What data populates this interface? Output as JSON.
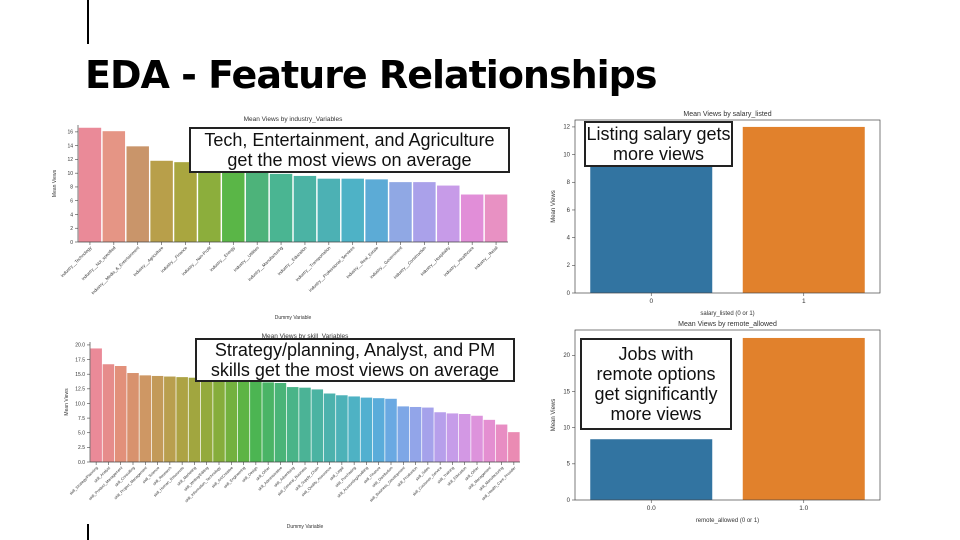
{
  "slide": {
    "title": "EDA - Feature Relationships"
  },
  "callouts": {
    "industry": "Tech, Entertainment, and Agriculture get the most views on average",
    "skill": "Strategy/planning, Analyst, and PM skills get the most views on average",
    "salary": "Listing salary gets more views",
    "remote": "Jobs with remote options get significantly more views"
  },
  "chart_data": [
    {
      "type": "bar",
      "title": "Mean Views by industry_Variables",
      "xlabel": "Dummy Variable",
      "ylabel": "Mean Views",
      "ylim": [
        0,
        17
      ],
      "yticks": [
        "0",
        "2",
        "4",
        "6",
        "8",
        "10",
        "12",
        "14",
        "16"
      ],
      "categories": [
        "industry__Technology",
        "industry__Not_specified",
        "industry__Media_&_Entertainment",
        "industry__Agriculture",
        "industry__Finance",
        "industry__Non-Profit",
        "industry__Energy",
        "industry__Utilities",
        "industry__Manufacturing",
        "industry__Education",
        "industry__Transportation",
        "industry__Professional_Services",
        "industry__Real_Estate",
        "industry__Government",
        "industry__Construction",
        "industry__Hospitality",
        "industry__Healthcare",
        "industry__Retail"
      ],
      "values": [
        16.6,
        16.1,
        13.9,
        11.8,
        11.6,
        10.9,
        10.1,
        10.1,
        9.9,
        9.6,
        9.2,
        9.2,
        9.1,
        8.7,
        8.7,
        8.2,
        6.9,
        6.9
      ],
      "colors": [
        "#ea8a98",
        "#e59585",
        "#c9956a",
        "#b89f4a",
        "#a9a63f",
        "#8cae3c",
        "#5ab647",
        "#4db37a",
        "#4ab592",
        "#4bb3a4",
        "#4cb1b4",
        "#4eb2c6",
        "#5cabd6",
        "#90a8e4",
        "#aaa1ea",
        "#c79be8",
        "#e18ed8",
        "#e891c3"
      ]
    },
    {
      "type": "bar",
      "title": "Mean Views by skill_Variables",
      "xlabel": "Dummy Variable",
      "ylabel": "Mean Views",
      "ylim": [
        0,
        20.5
      ],
      "yticks": [
        "0.0",
        "2.5",
        "5.0",
        "7.5",
        "10.0",
        "12.5",
        "15.0",
        "17.5",
        "20.0"
      ],
      "categories": [
        "skill_Strategy/Planning",
        "skill_Analyst",
        "skill_Product_Management",
        "skill_Consulting",
        "skill_Project_Management",
        "skill_Science",
        "skill_Research",
        "skill_Human_Resources",
        "skill_Marketing",
        "skill_Writing/Editing",
        "skill_Information_Technology",
        "skill_Art/Creative",
        "skill_Engineering",
        "skill_Design",
        "skill_Other",
        "skill_Administrative",
        "skill_Advertising",
        "skill_General_Business",
        "skill_Supply_Chain",
        "skill_Quality_Assurance",
        "skill_Legal",
        "skill_Purchasing",
        "skill_Accounting/Auditing",
        "skill_Finance",
        "skill_Distribution",
        "skill_Business_Development",
        "skill_Production",
        "skill_Sales",
        "skill_Customer_Service",
        "skill_Training",
        "skill_Education",
        "skill_Other",
        "skill_Management",
        "skill_Manufacturing",
        "skill_Health_Care_Provider"
      ],
      "values": [
        19.4,
        16.7,
        16.4,
        15.2,
        14.8,
        14.7,
        14.6,
        14.5,
        14.4,
        14.3,
        14.2,
        14.1,
        13.9,
        13.8,
        13.6,
        13.5,
        12.8,
        12.7,
        12.4,
        11.7,
        11.4,
        11.2,
        11.0,
        10.9,
        10.8,
        9.5,
        9.4,
        9.3,
        8.5,
        8.3,
        8.2,
        7.9,
        7.2,
        6.4,
        5.1
      ],
      "colors": [
        "#ea8a98",
        "#e68c8b",
        "#e2907a",
        "#d8926e",
        "#ce9764",
        "#c39a59",
        "#b99f4e",
        "#ada344",
        "#a1a63f",
        "#94aa3c",
        "#86ad3b",
        "#73b13e",
        "#5db444",
        "#4cb552",
        "#4ab466",
        "#4ab478",
        "#4ab488",
        "#4bb396",
        "#4bb3a2",
        "#4cb2ad",
        "#4db2b8",
        "#4eb2c4",
        "#52b0d0",
        "#5aacda",
        "#6aa9e2",
        "#7ea7e6",
        "#92a5e9",
        "#a5a2eb",
        "#b79feb",
        "#c69ce9",
        "#d398e4",
        "#dd93dc",
        "#e48fd1",
        "#e88dc3",
        "#ea8bb3"
      ]
    },
    {
      "type": "bar",
      "title": "Mean Views by salary_listed",
      "xlabel": "salary_listed (0 or 1)",
      "ylabel": "Mean Views",
      "ylim": [
        0,
        12.5
      ],
      "yticks": [
        "0",
        "2",
        "4",
        "6",
        "8",
        "10",
        "12"
      ],
      "categories": [
        "0",
        "1"
      ],
      "values": [
        9.4,
        12.0
      ],
      "colors": [
        "#3274a1",
        "#e1812c"
      ]
    },
    {
      "type": "bar",
      "title": "Mean Views by remote_allowed",
      "xlabel": "remote_allowed (0 or 1)",
      "ylabel": "Mean Views",
      "ylim": [
        0,
        23.5
      ],
      "yticks": [
        "0",
        "5",
        "10",
        "15",
        "20"
      ],
      "categories": [
        "0.0",
        "1.0"
      ],
      "values": [
        8.4,
        22.4
      ],
      "colors": [
        "#3274a1",
        "#e1812c"
      ]
    }
  ]
}
